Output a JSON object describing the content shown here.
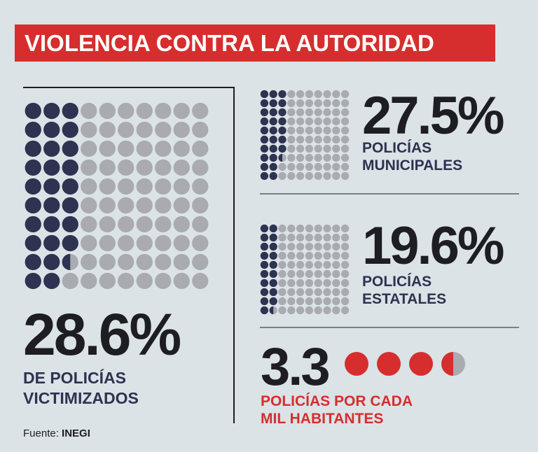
{
  "title": "VIOLENCIA CONTRA LA AUTORIDAD",
  "colors": {
    "background": "#dbe3e6",
    "accent_red": "#d62e2e",
    "dot_filled": "#2d3350",
    "dot_empty": "#a9abb0",
    "text_dark": "#1d1d22"
  },
  "chart_data": [
    {
      "type": "waffle",
      "value_percent": 28.6,
      "value_label": "28.6%",
      "label_lines": [
        "DE POLICÍAS",
        "VICTIMIZADOS"
      ],
      "grid": {
        "rows": 10,
        "cols": 10
      }
    },
    {
      "type": "waffle",
      "value_percent": 27.5,
      "value_label": "27.5%",
      "label_lines": [
        "POLICÍAS",
        "MUNICIPALES"
      ],
      "grid": {
        "rows": 10,
        "cols": 10
      }
    },
    {
      "type": "waffle",
      "value_percent": 19.6,
      "value_label": "19.6%",
      "label_lines": [
        "POLICÍAS",
        "ESTATALES"
      ],
      "grid": {
        "rows": 10,
        "cols": 10
      }
    },
    {
      "type": "pictogram",
      "value": 3.3,
      "value_label": "3.3",
      "label_lines": [
        "POLICÍAS POR CADA",
        "MIL HABITANTES"
      ]
    }
  ],
  "source": {
    "prefix": "Fuente:",
    "name": "INEGI"
  }
}
